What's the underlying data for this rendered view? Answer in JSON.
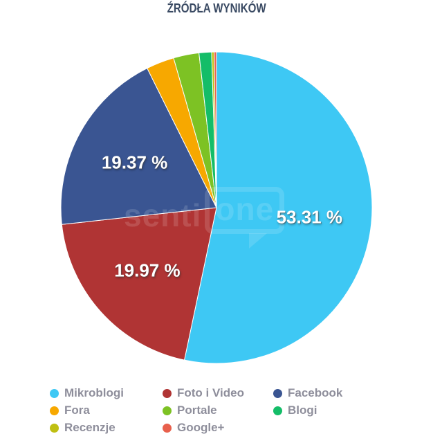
{
  "title": "ŹRÓDŁA WYNIKÓW",
  "watermark": {
    "text_left": "senti",
    "bubble_text": "one"
  },
  "styles": {
    "background": "#FFFFFF",
    "title_color": "#3A4A63",
    "legend_text_color": "#8E8E9B",
    "data_label_color": "#FFFFFF",
    "slice_border_color": "#FFFFFF"
  },
  "chart_data": {
    "type": "pie",
    "title": "ŹRÓDŁA WYNIKÓW",
    "legend_position": "bottom",
    "legend_columns": 3,
    "start_angle_deg": 0,
    "direction": "clockwise",
    "slices": [
      {
        "label": "Mikroblogi",
        "value": 53.31,
        "color": "#3EC8F4",
        "data_label": "53.31 %"
      },
      {
        "label": "Foto i Video",
        "value": 19.97,
        "color": "#B03434",
        "data_label": "19.97 %"
      },
      {
        "label": "Facebook",
        "value": 19.37,
        "color": "#3A5592",
        "data_label": "19.37 %"
      },
      {
        "label": "Fora",
        "value": 2.9,
        "color": "#F7A800",
        "data_label": ""
      },
      {
        "label": "Portale",
        "value": 2.65,
        "color": "#7DC224",
        "data_label": ""
      },
      {
        "label": "Blogi",
        "value": 1.3,
        "color": "#14BD68",
        "data_label": ""
      },
      {
        "label": "Recenzje",
        "value": 0.25,
        "color": "#BFBF12",
        "data_label": ""
      },
      {
        "label": "Google+",
        "value": 0.25,
        "color": "#E8604C",
        "data_label": ""
      }
    ]
  }
}
